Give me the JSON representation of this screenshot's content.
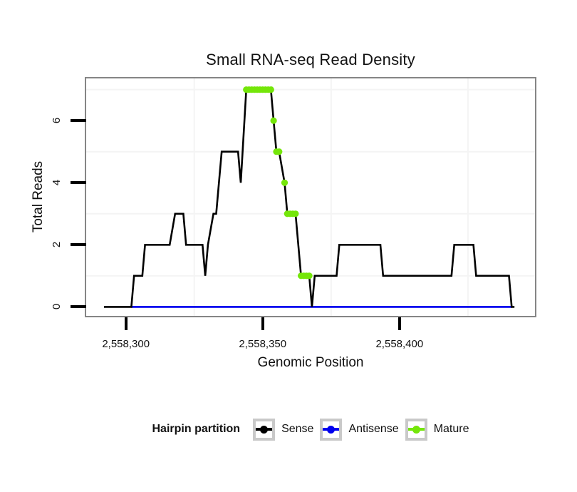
{
  "title": "Small RNA-seq Read Density",
  "chart_data": {
    "type": "line",
    "title": "Small RNA-seq Read Density",
    "xlabel": "Genomic Position",
    "ylabel": "Total Reads",
    "xlim": [
      2558285.5,
      2558449.5
    ],
    "ylim": [
      -0.29,
      7.36
    ],
    "grid": true,
    "legend_position": "bottom",
    "x_ticks": {
      "values": [
        2558300,
        2558350,
        2558400
      ],
      "labels": [
        "2,558,300",
        "2,558,350",
        "2,558,400"
      ]
    },
    "y_ticks": {
      "values": [
        0,
        2,
        4,
        6
      ],
      "labels": [
        "0",
        "2",
        "4",
        "6"
      ]
    },
    "x_gridlines": [
      2558325,
      2558375,
      2558425
    ],
    "y_gridlines": [
      1,
      3,
      5,
      7
    ],
    "gridline_color": "#f4f4f4",
    "series": [
      {
        "name": "Antisense",
        "draw": "line",
        "color": "#0000EE",
        "stroke_width": 2.8,
        "points": [
          [
            2558302,
            0
          ],
          [
            2558441,
            0
          ]
        ]
      },
      {
        "name": "Sense",
        "draw": "line",
        "color": "#000000",
        "stroke_width": 2.6,
        "points": [
          [
            2558292,
            0
          ],
          [
            2558302,
            0
          ],
          [
            2558303,
            1
          ],
          [
            2558306,
            1
          ],
          [
            2558307,
            2
          ],
          [
            2558316,
            2
          ],
          [
            2558318,
            3
          ],
          [
            2558321,
            3
          ],
          [
            2558322,
            2
          ],
          [
            2558328,
            2
          ],
          [
            2558329,
            1
          ],
          [
            2558330,
            2
          ],
          [
            2558332,
            3
          ],
          [
            2558333,
            3
          ],
          [
            2558335,
            5
          ],
          [
            2558341,
            5
          ],
          [
            2558342,
            4
          ],
          [
            2558344,
            7
          ],
          [
            2558353,
            7
          ],
          [
            2558354,
            6
          ],
          [
            2558355,
            5
          ],
          [
            2558356,
            5
          ],
          [
            2558358,
            4
          ],
          [
            2558359,
            3
          ],
          [
            2558362,
            3
          ],
          [
            2558364,
            1
          ],
          [
            2558367,
            1
          ],
          [
            2558368,
            0
          ],
          [
            2558369,
            1
          ],
          [
            2558377,
            1
          ],
          [
            2558378,
            2
          ],
          [
            2558393,
            2
          ],
          [
            2558394,
            1
          ],
          [
            2558419,
            1
          ],
          [
            2558420,
            2
          ],
          [
            2558427,
            2
          ],
          [
            2558428,
            1
          ],
          [
            2558440,
            1
          ],
          [
            2558441,
            0
          ],
          [
            2558442,
            0
          ]
        ]
      },
      {
        "name": "Mature",
        "draw": "points",
        "color": "#74E609",
        "point_radius": 4.6,
        "points": [
          [
            2558344,
            7
          ],
          [
            2558345,
            7
          ],
          [
            2558346,
            7
          ],
          [
            2558347,
            7
          ],
          [
            2558348,
            7
          ],
          [
            2558349,
            7
          ],
          [
            2558350,
            7
          ],
          [
            2558351,
            7
          ],
          [
            2558352,
            7
          ],
          [
            2558353,
            7
          ],
          [
            2558354,
            6
          ],
          [
            2558355,
            5
          ],
          [
            2558356,
            5
          ],
          [
            2558358,
            4
          ],
          [
            2558359,
            3
          ],
          [
            2558360,
            3
          ],
          [
            2558361,
            3
          ],
          [
            2558362,
            3
          ],
          [
            2558364,
            1
          ],
          [
            2558365,
            1
          ],
          [
            2558366,
            1
          ],
          [
            2558367,
            1
          ]
        ]
      }
    ]
  },
  "legend": {
    "title": "Hairpin partition",
    "items": [
      {
        "label": "Sense",
        "color": "#000000"
      },
      {
        "label": "Antisense",
        "color": "#0000EE"
      },
      {
        "label": "Mature",
        "color": "#74E609"
      }
    ]
  }
}
